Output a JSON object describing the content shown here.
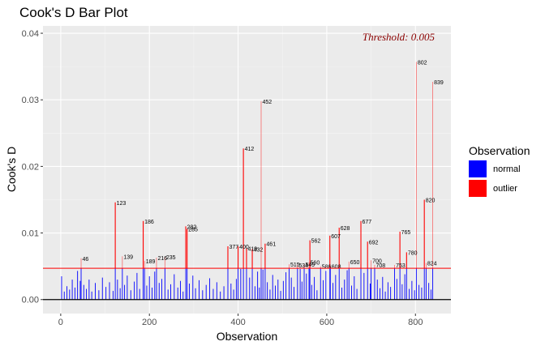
{
  "chart_data": {
    "type": "bar",
    "title": "Cook's D Bar Plot",
    "xlabel": "Observation",
    "ylabel": "Cook's D",
    "xlim": [
      -40,
      880
    ],
    "ylim": [
      -0.0021,
      0.0411
    ],
    "x_ticks": [
      0,
      200,
      400,
      600,
      800
    ],
    "y_ticks": [
      0.0,
      0.01,
      0.02,
      0.03,
      0.04
    ],
    "y_tick_labels": [
      "0.00",
      "0.01",
      "0.02",
      "0.03",
      "0.04"
    ],
    "threshold": 0.0047,
    "threshold_label": "Threshold: 0.005",
    "grid": true,
    "legend": {
      "title": "Observation",
      "placement": "right",
      "entries": [
        {
          "name": "normal",
          "color": "#0000ff"
        },
        {
          "name": "outlier",
          "color": "#ff0000"
        }
      ]
    },
    "colors": {
      "normal": "#0000ff",
      "outlier": "#ff0000",
      "threshold_text": "#8b0000",
      "panel": "#ebebeb"
    },
    "outliers": [
      {
        "obs": 46,
        "value": 0.0062
      },
      {
        "obs": 123,
        "value": 0.0146
      },
      {
        "obs": 139,
        "value": 0.0065
      },
      {
        "obs": 186,
        "value": 0.0118
      },
      {
        "obs": 189,
        "value": 0.0058
      },
      {
        "obs": 216,
        "value": 0.0063
      },
      {
        "obs": 235,
        "value": 0.0064
      },
      {
        "obs": 282,
        "value": 0.011
      },
      {
        "obs": 285,
        "value": 0.0106
      },
      {
        "obs": 377,
        "value": 0.008
      },
      {
        "obs": 400,
        "value": 0.008
      },
      {
        "obs": 412,
        "value": 0.0227
      },
      {
        "obs": 419,
        "value": 0.0077
      },
      {
        "obs": 432,
        "value": 0.0076
      },
      {
        "obs": 452,
        "value": 0.0298
      },
      {
        "obs": 461,
        "value": 0.0084
      },
      {
        "obs": 515,
        "value": 0.0053
      },
      {
        "obs": 534,
        "value": 0.0052
      },
      {
        "obs": 549,
        "value": 0.0053
      },
      {
        "obs": 560,
        "value": 0.0056
      },
      {
        "obs": 562,
        "value": 0.0089
      },
      {
        "obs": 586,
        "value": 0.005
      },
      {
        "obs": 607,
        "value": 0.0096
      },
      {
        "obs": 608,
        "value": 0.005
      },
      {
        "obs": 628,
        "value": 0.0108
      },
      {
        "obs": 650,
        "value": 0.0057
      },
      {
        "obs": 677,
        "value": 0.0118
      },
      {
        "obs": 692,
        "value": 0.0087
      },
      {
        "obs": 700,
        "value": 0.0059
      },
      {
        "obs": 708,
        "value": 0.0052
      },
      {
        "obs": 753,
        "value": 0.0052
      },
      {
        "obs": 765,
        "value": 0.0102
      },
      {
        "obs": 780,
        "value": 0.0071
      },
      {
        "obs": 802,
        "value": 0.0357
      },
      {
        "obs": 820,
        "value": 0.015
      },
      {
        "obs": 824,
        "value": 0.0055
      },
      {
        "obs": 839,
        "value": 0.0327
      }
    ],
    "normal_bars": [
      {
        "obs": 2,
        "value": 0.0035
      },
      {
        "obs": 8,
        "value": 0.0012
      },
      {
        "obs": 14,
        "value": 0.002
      },
      {
        "obs": 20,
        "value": 0.0015
      },
      {
        "obs": 26,
        "value": 0.003
      },
      {
        "obs": 32,
        "value": 0.0018
      },
      {
        "obs": 38,
        "value": 0.0043
      },
      {
        "obs": 44,
        "value": 0.0028
      },
      {
        "obs": 52,
        "value": 0.0022
      },
      {
        "obs": 58,
        "value": 0.0016
      },
      {
        "obs": 64,
        "value": 0.003
      },
      {
        "obs": 70,
        "value": 0.0012
      },
      {
        "obs": 78,
        "value": 0.0025
      },
      {
        "obs": 86,
        "value": 0.0014
      },
      {
        "obs": 94,
        "value": 0.0033
      },
      {
        "obs": 102,
        "value": 0.0019
      },
      {
        "obs": 110,
        "value": 0.0026
      },
      {
        "obs": 118,
        "value": 0.0013
      },
      {
        "obs": 128,
        "value": 0.003
      },
      {
        "obs": 134,
        "value": 0.0017
      },
      {
        "obs": 144,
        "value": 0.0022
      },
      {
        "obs": 150,
        "value": 0.0036
      },
      {
        "obs": 158,
        "value": 0.0014
      },
      {
        "obs": 166,
        "value": 0.0027
      },
      {
        "obs": 172,
        "value": 0.004
      },
      {
        "obs": 178,
        "value": 0.0016
      },
      {
        "obs": 194,
        "value": 0.0021
      },
      {
        "obs": 200,
        "value": 0.0035
      },
      {
        "obs": 206,
        "value": 0.0018
      },
      {
        "obs": 212,
        "value": 0.0042
      },
      {
        "obs": 222,
        "value": 0.0025
      },
      {
        "obs": 228,
        "value": 0.0031
      },
      {
        "obs": 242,
        "value": 0.0015
      },
      {
        "obs": 248,
        "value": 0.0023
      },
      {
        "obs": 256,
        "value": 0.0038
      },
      {
        "obs": 264,
        "value": 0.0018
      },
      {
        "obs": 270,
        "value": 0.0028
      },
      {
        "obs": 276,
        "value": 0.0012
      },
      {
        "obs": 290,
        "value": 0.0024
      },
      {
        "obs": 298,
        "value": 0.0036
      },
      {
        "obs": 304,
        "value": 0.0017
      },
      {
        "obs": 312,
        "value": 0.0029
      },
      {
        "obs": 320,
        "value": 0.0014
      },
      {
        "obs": 328,
        "value": 0.0022
      },
      {
        "obs": 336,
        "value": 0.0032
      },
      {
        "obs": 344,
        "value": 0.0016
      },
      {
        "obs": 352,
        "value": 0.0026
      },
      {
        "obs": 360,
        "value": 0.0012
      },
      {
        "obs": 368,
        "value": 0.002
      },
      {
        "obs": 384,
        "value": 0.0024
      },
      {
        "obs": 390,
        "value": 0.0015
      },
      {
        "obs": 396,
        "value": 0.0031
      },
      {
        "obs": 406,
        "value": 0.0046
      },
      {
        "obs": 426,
        "value": 0.0033
      },
      {
        "obs": 438,
        "value": 0.002
      },
      {
        "obs": 444,
        "value": 0.0042
      },
      {
        "obs": 448,
        "value": 0.0018
      },
      {
        "obs": 456,
        "value": 0.0045
      },
      {
        "obs": 466,
        "value": 0.0026
      },
      {
        "obs": 472,
        "value": 0.0015
      },
      {
        "obs": 478,
        "value": 0.0037
      },
      {
        "obs": 484,
        "value": 0.0021
      },
      {
        "obs": 490,
        "value": 0.003
      },
      {
        "obs": 496,
        "value": 0.0013
      },
      {
        "obs": 502,
        "value": 0.0028
      },
      {
        "obs": 508,
        "value": 0.0041
      },
      {
        "obs": 520,
        "value": 0.0033
      },
      {
        "obs": 526,
        "value": 0.0019
      },
      {
        "obs": 540,
        "value": 0.0046
      },
      {
        "obs": 544,
        "value": 0.0027
      },
      {
        "obs": 554,
        "value": 0.0039
      },
      {
        "obs": 566,
        "value": 0.0022
      },
      {
        "obs": 572,
        "value": 0.0034
      },
      {
        "obs": 578,
        "value": 0.0014
      },
      {
        "obs": 592,
        "value": 0.0029
      },
      {
        "obs": 598,
        "value": 0.0043
      },
      {
        "obs": 614,
        "value": 0.0025
      },
      {
        "obs": 620,
        "value": 0.0037
      },
      {
        "obs": 634,
        "value": 0.0018
      },
      {
        "obs": 640,
        "value": 0.003
      },
      {
        "obs": 646,
        "value": 0.0044
      },
      {
        "obs": 656,
        "value": 0.0021
      },
      {
        "obs": 662,
        "value": 0.0035
      },
      {
        "obs": 668,
        "value": 0.0016
      },
      {
        "obs": 684,
        "value": 0.004
      },
      {
        "obs": 698,
        "value": 0.0024
      },
      {
        "obs": 714,
        "value": 0.003
      },
      {
        "obs": 720,
        "value": 0.0017
      },
      {
        "obs": 726,
        "value": 0.0034
      },
      {
        "obs": 732,
        "value": 0.0012
      },
      {
        "obs": 738,
        "value": 0.0026
      },
      {
        "obs": 744,
        "value": 0.0019
      },
      {
        "obs": 758,
        "value": 0.0031
      },
      {
        "obs": 770,
        "value": 0.0023
      },
      {
        "obs": 776,
        "value": 0.0038
      },
      {
        "obs": 786,
        "value": 0.0016
      },
      {
        "obs": 792,
        "value": 0.0028
      },
      {
        "obs": 798,
        "value": 0.0014
      },
      {
        "obs": 808,
        "value": 0.0022
      },
      {
        "obs": 814,
        "value": 0.0018
      },
      {
        "obs": 830,
        "value": 0.0025
      },
      {
        "obs": 835,
        "value": 0.0015
      }
    ]
  }
}
